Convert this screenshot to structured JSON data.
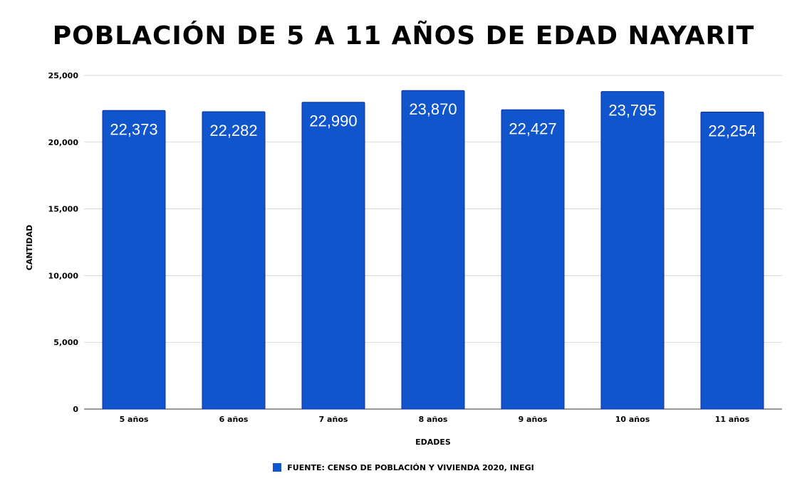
{
  "chart_data": {
    "type": "bar",
    "title": "POBLACIÓN DE 5 A 11 AÑOS DE EDAD NAYARIT",
    "xlabel": "EDADES",
    "ylabel": "CANTIDAD",
    "categories": [
      "5 años",
      "6 años",
      "7 años",
      "8 años",
      "9 años",
      "10 años",
      "11 años"
    ],
    "values": [
      22373,
      22282,
      22990,
      23870,
      22427,
      23795,
      22254
    ],
    "value_labels": [
      "22,373",
      "22,282",
      "22,990",
      "23,870",
      "22,427",
      "23,795",
      "22,254"
    ],
    "ylim": [
      0,
      25000
    ],
    "yticks": [
      0,
      5000,
      10000,
      15000,
      20000,
      25000
    ],
    "ytick_labels": [
      "0",
      "5,000",
      "10,000",
      "15,000",
      "20,000",
      "25,000"
    ],
    "grid": true,
    "legend": {
      "label": "FUENTE: CENSO DE POBLACIÓN Y VIVIENDA 2020, INEGI",
      "position": "bottom"
    },
    "colors": {
      "bar": "#1155cc",
      "bar_border": "#0b2fa0",
      "grid": "#d9d9d9",
      "value_label": "#ffffff"
    }
  }
}
